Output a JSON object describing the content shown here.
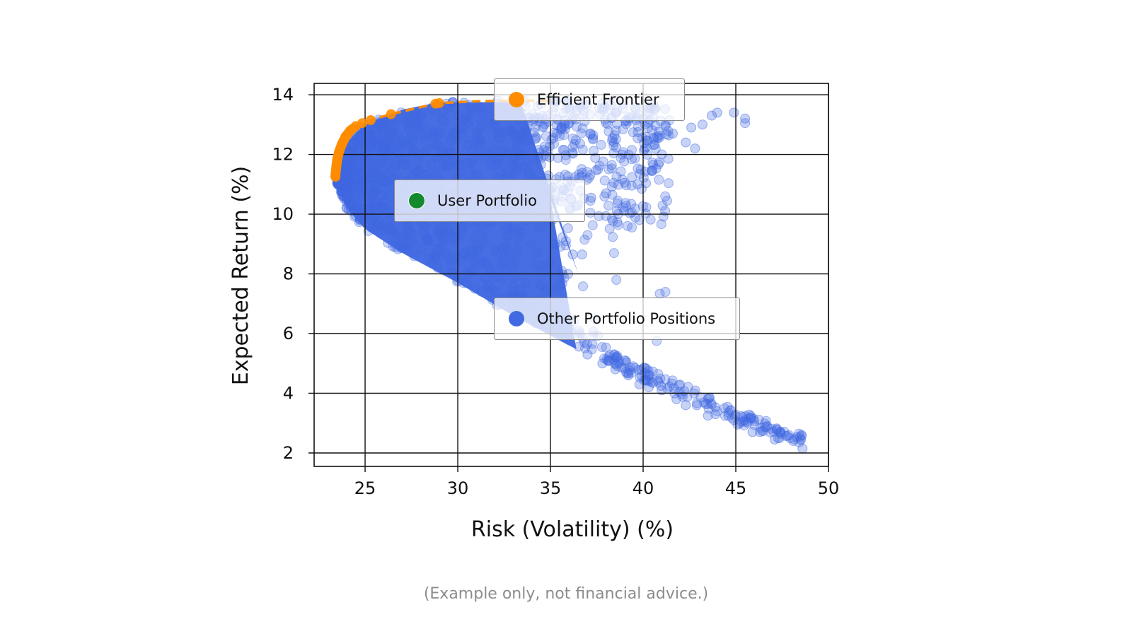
{
  "chart_data": {
    "type": "scatter",
    "title": "",
    "xlabel": "Risk (Volatility) (%)",
    "ylabel": "Expected Return (%)",
    "xlim": [
      22.25,
      50
    ],
    "ylim": [
      1.55,
      14.38
    ],
    "xticks": [
      25,
      30,
      35,
      40,
      45,
      50
    ],
    "yticks": [
      2,
      4,
      6,
      8,
      10,
      12,
      14
    ],
    "grid": true,
    "legend_position": "inside, floating (three separate boxes)",
    "series": [
      {
        "name": "Other Portfolio Positions",
        "color": "#4169E1",
        "marker": "circle",
        "alpha": 0.3,
        "description": "Dense Monte Carlo cloud of simulated portfolios bounded on the left by a hyperbolic frontier (min variance ~23.4% risk at ~11.2% return), fanning right to ~45.5% risk near 13% return and tailing down to ~48.6% risk at ~2.2% return",
        "envelope": {
          "min_variance_point": {
            "x": 23.4,
            "y": 11.2
          },
          "upper_edge": [
            {
              "x": 23.4,
              "y": 11.2
            },
            {
              "x": 24.0,
              "y": 12.4
            },
            {
              "x": 25.0,
              "y": 13.0
            },
            {
              "x": 27.0,
              "y": 13.5
            },
            {
              "x": 29.0,
              "y": 13.75
            },
            {
              "x": 33.0,
              "y": 13.85
            },
            {
              "x": 40.0,
              "y": 13.8
            },
            {
              "x": 45.5,
              "y": 13.2
            }
          ],
          "lower_edge": [
            {
              "x": 23.4,
              "y": 11.2
            },
            {
              "x": 24.0,
              "y": 10.2
            },
            {
              "x": 25.0,
              "y": 9.5
            },
            {
              "x": 27.0,
              "y": 8.7
            },
            {
              "x": 30.0,
              "y": 7.7
            },
            {
              "x": 33.0,
              "y": 6.6
            },
            {
              "x": 36.0,
              "y": 5.6
            },
            {
              "x": 39.0,
              "y": 4.7
            },
            {
              "x": 42.0,
              "y": 3.9
            },
            {
              "x": 45.0,
              "y": 3.0
            },
            {
              "x": 48.6,
              "y": 2.2
            }
          ]
        },
        "sample_points": [
          {
            "x": 48.6,
            "y": 2.15
          },
          {
            "x": 47.1,
            "y": 2.45
          },
          {
            "x": 46.3,
            "y": 2.7
          },
          {
            "x": 45.9,
            "y": 2.7
          },
          {
            "x": 45.1,
            "y": 2.95
          },
          {
            "x": 44.6,
            "y": 3.25
          },
          {
            "x": 43.9,
            "y": 3.3
          },
          {
            "x": 43.5,
            "y": 3.25
          },
          {
            "x": 42.9,
            "y": 3.6
          },
          {
            "x": 42.3,
            "y": 3.6
          },
          {
            "x": 41.8,
            "y": 3.8
          },
          {
            "x": 41.0,
            "y": 4.1
          },
          {
            "x": 40.3,
            "y": 4.2
          },
          {
            "x": 39.8,
            "y": 4.3
          },
          {
            "x": 39.2,
            "y": 4.6
          },
          {
            "x": 38.5,
            "y": 4.8
          },
          {
            "x": 37.8,
            "y": 5.0
          },
          {
            "x": 37.0,
            "y": 5.3
          },
          {
            "x": 45.5,
            "y": 13.2
          },
          {
            "x": 45.5,
            "y": 13.05
          },
          {
            "x": 44.9,
            "y": 13.4
          },
          {
            "x": 44.0,
            "y": 13.4
          },
          {
            "x": 43.7,
            "y": 13.3
          },
          {
            "x": 43.2,
            "y": 13.0
          },
          {
            "x": 42.6,
            "y": 12.9
          },
          {
            "x": 42.8,
            "y": 12.2
          },
          {
            "x": 42.3,
            "y": 12.4
          },
          {
            "x": 41.6,
            "y": 12.7
          },
          {
            "x": 41.2,
            "y": 12.95
          },
          {
            "x": 40.5,
            "y": 11.45
          },
          {
            "x": 39.7,
            "y": 11.0
          },
          {
            "x": 39.0,
            "y": 11.05
          },
          {
            "x": 38.0,
            "y": 10.7
          },
          {
            "x": 37.2,
            "y": 10.55
          },
          {
            "x": 36.5,
            "y": 10.3
          },
          {
            "x": 36.7,
            "y": 8.65
          },
          {
            "x": 36.2,
            "y": 8.65
          },
          {
            "x": 35.5,
            "y": 7.6
          },
          {
            "x": 35.0,
            "y": 8.4
          },
          {
            "x": 34.6,
            "y": 8.1
          },
          {
            "x": 34.0,
            "y": 9.0
          },
          {
            "x": 33.4,
            "y": 9.4
          }
        ]
      },
      {
        "name": "Efficient Frontier",
        "color": "#FF8C00",
        "marker": "circle",
        "line": "dashed",
        "points": [
          {
            "x": 23.4,
            "y": 11.3
          },
          {
            "x": 23.45,
            "y": 11.6
          },
          {
            "x": 23.5,
            "y": 11.85
          },
          {
            "x": 23.6,
            "y": 12.1
          },
          {
            "x": 23.75,
            "y": 12.35
          },
          {
            "x": 23.95,
            "y": 12.6
          },
          {
            "x": 24.2,
            "y": 12.8
          },
          {
            "x": 24.5,
            "y": 12.95
          },
          {
            "x": 24.85,
            "y": 13.05
          },
          {
            "x": 25.3,
            "y": 13.15
          },
          {
            "x": 26.4,
            "y": 13.35
          },
          {
            "x": 28.8,
            "y": 13.7
          },
          {
            "x": 29.0,
            "y": 13.72
          },
          {
            "x": 31.0,
            "y": 13.78
          },
          {
            "x": 33.0,
            "y": 13.8
          },
          {
            "x": 35.0,
            "y": 13.8
          }
        ]
      },
      {
        "name": "User Portfolio",
        "color": "#138A2E",
        "marker": "circle",
        "points": []
      }
    ]
  },
  "axes": {
    "x_title": "Risk (Volatility) (%)",
    "y_title": "Expected Return (%)",
    "x_tick_labels": [
      "25",
      "30",
      "35",
      "40",
      "45",
      "50"
    ],
    "y_tick_labels": [
      "14",
      "12",
      "10",
      "8",
      "6",
      "4",
      "2"
    ]
  },
  "legend": {
    "efficient_frontier": {
      "label": "Efficient Frontier",
      "color": "#FF8C00"
    },
    "user_portfolio": {
      "label": "User Portfolio",
      "color": "#138A2E"
    },
    "other_positions": {
      "label": "Other Portfolio Positions",
      "color": "#4169E1"
    }
  },
  "footer": {
    "disclaimer": "(Example only, not financial advice.)"
  },
  "colors": {
    "cloud": "#4169E1",
    "frontier": "#FF8C00",
    "user": "#138A2E",
    "grid": "#000000",
    "disclaimer": "#8C8C8C"
  }
}
